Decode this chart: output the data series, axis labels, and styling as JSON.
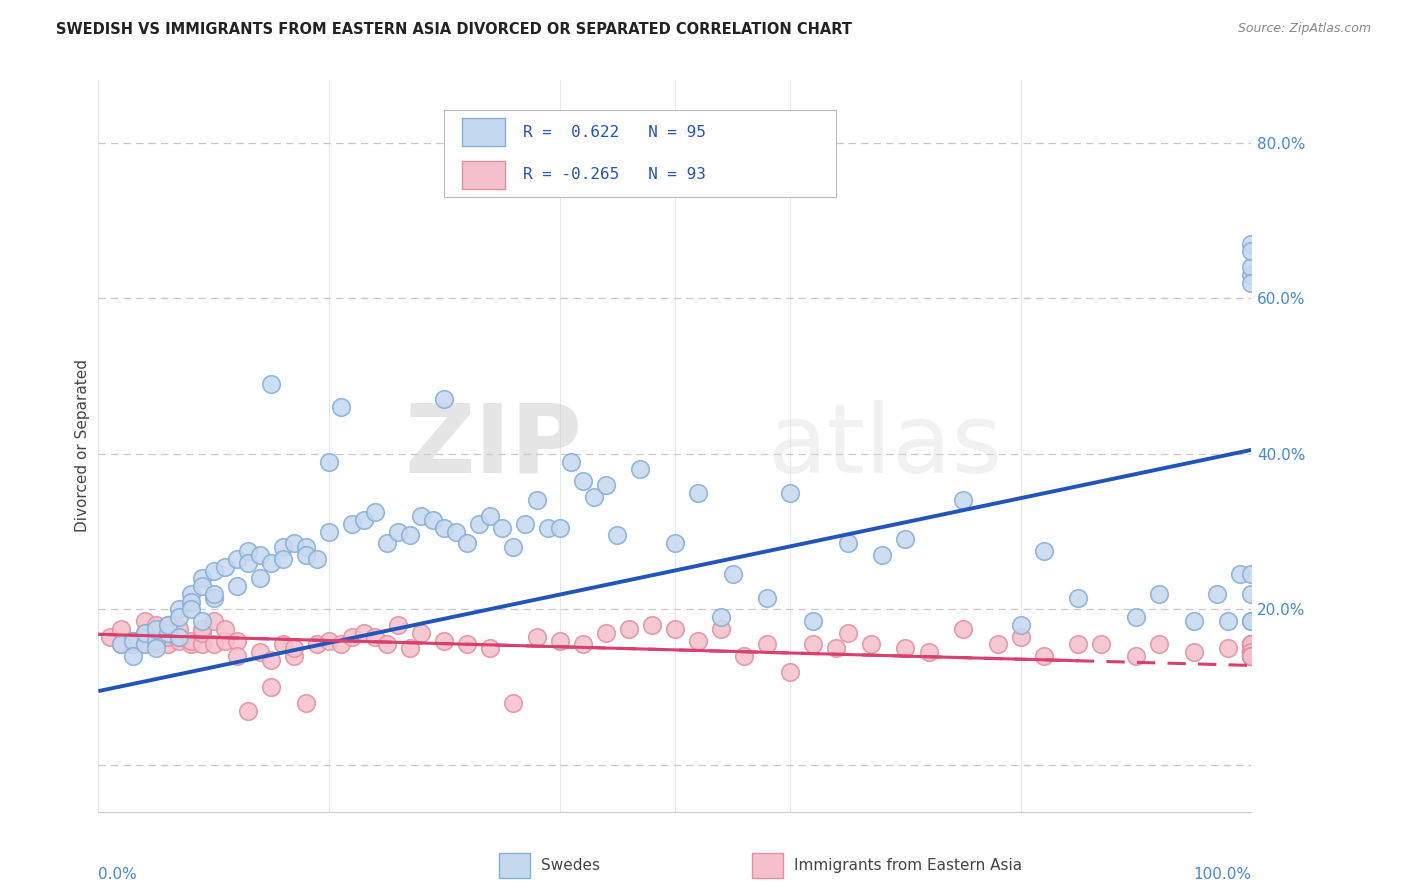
{
  "title": "SWEDISH VS IMMIGRANTS FROM EASTERN ASIA DIVORCED OR SEPARATED CORRELATION CHART",
  "source": "Source: ZipAtlas.com",
  "ylabel": "Divorced or Separated",
  "watermark": "ZIPatlas",
  "blue_R": 0.622,
  "blue_N": 95,
  "pink_R": -0.265,
  "pink_N": 93,
  "blue_marker_face": "#C5D9F0",
  "blue_marker_edge": "#85AED4",
  "pink_marker_face": "#F5C0CB",
  "pink_marker_edge": "#E090A0",
  "trend_blue": "#2255BB",
  "trend_pink": "#D94070",
  "legend_blue_label": "Swedes",
  "legend_pink_label": "Immigrants from Eastern Asia",
  "ytick_values": [
    0.0,
    0.2,
    0.4,
    0.6,
    0.8
  ],
  "xmin": 0.0,
  "xmax": 1.0,
  "ymin": -0.06,
  "ymax": 0.88,
  "blue_trend_x0": 0.0,
  "blue_trend_y0": 0.095,
  "blue_trend_x1": 1.0,
  "blue_trend_y1": 0.405,
  "pink_trend_x0": 0.0,
  "pink_trend_y0": 0.168,
  "pink_trend_x1": 1.0,
  "pink_trend_y1": 0.128,
  "blue_x": [
    0.02,
    0.03,
    0.03,
    0.04,
    0.04,
    0.05,
    0.05,
    0.05,
    0.06,
    0.06,
    0.07,
    0.07,
    0.07,
    0.08,
    0.08,
    0.08,
    0.09,
    0.09,
    0.09,
    0.1,
    0.1,
    0.1,
    0.11,
    0.12,
    0.12,
    0.13,
    0.13,
    0.14,
    0.14,
    0.15,
    0.15,
    0.16,
    0.16,
    0.17,
    0.18,
    0.18,
    0.19,
    0.2,
    0.2,
    0.21,
    0.22,
    0.23,
    0.24,
    0.25,
    0.26,
    0.27,
    0.28,
    0.29,
    0.3,
    0.3,
    0.31,
    0.32,
    0.33,
    0.34,
    0.35,
    0.36,
    0.37,
    0.38,
    0.39,
    0.4,
    0.41,
    0.42,
    0.43,
    0.44,
    0.45,
    0.47,
    0.5,
    0.52,
    0.54,
    0.55,
    0.58,
    0.6,
    0.62,
    0.65,
    0.68,
    0.7,
    0.75,
    0.8,
    0.82,
    0.85,
    0.9,
    0.92,
    0.95,
    0.97,
    0.98,
    0.99,
    1.0,
    1.0,
    1.0,
    1.0,
    1.0,
    1.0,
    1.0,
    1.0,
    1.0
  ],
  "blue_y": [
    0.155,
    0.16,
    0.14,
    0.155,
    0.17,
    0.16,
    0.175,
    0.15,
    0.17,
    0.18,
    0.165,
    0.2,
    0.19,
    0.22,
    0.21,
    0.2,
    0.185,
    0.24,
    0.23,
    0.25,
    0.215,
    0.22,
    0.255,
    0.23,
    0.265,
    0.275,
    0.26,
    0.24,
    0.27,
    0.26,
    0.49,
    0.28,
    0.265,
    0.285,
    0.28,
    0.27,
    0.265,
    0.3,
    0.39,
    0.46,
    0.31,
    0.315,
    0.325,
    0.285,
    0.3,
    0.295,
    0.32,
    0.315,
    0.305,
    0.47,
    0.3,
    0.285,
    0.31,
    0.32,
    0.305,
    0.28,
    0.31,
    0.34,
    0.305,
    0.305,
    0.39,
    0.365,
    0.345,
    0.36,
    0.295,
    0.38,
    0.285,
    0.35,
    0.19,
    0.245,
    0.215,
    0.35,
    0.185,
    0.285,
    0.27,
    0.29,
    0.34,
    0.18,
    0.275,
    0.215,
    0.19,
    0.22,
    0.185,
    0.22,
    0.185,
    0.245,
    0.63,
    0.67,
    0.64,
    0.66,
    0.62,
    0.185,
    0.22,
    0.185,
    0.245
  ],
  "pink_x": [
    0.01,
    0.02,
    0.02,
    0.03,
    0.03,
    0.04,
    0.04,
    0.04,
    0.05,
    0.05,
    0.05,
    0.06,
    0.06,
    0.06,
    0.07,
    0.07,
    0.07,
    0.08,
    0.08,
    0.09,
    0.09,
    0.09,
    0.1,
    0.1,
    0.11,
    0.11,
    0.12,
    0.12,
    0.13,
    0.14,
    0.15,
    0.15,
    0.16,
    0.17,
    0.17,
    0.18,
    0.19,
    0.2,
    0.21,
    0.22,
    0.23,
    0.24,
    0.25,
    0.26,
    0.27,
    0.28,
    0.3,
    0.32,
    0.34,
    0.36,
    0.38,
    0.4,
    0.42,
    0.44,
    0.46,
    0.48,
    0.5,
    0.52,
    0.54,
    0.56,
    0.58,
    0.6,
    0.62,
    0.64,
    0.65,
    0.67,
    0.7,
    0.72,
    0.75,
    0.78,
    0.8,
    0.82,
    0.85,
    0.87,
    0.9,
    0.92,
    0.95,
    0.98,
    1.0,
    1.0,
    1.0,
    1.0,
    1.0,
    1.0,
    1.0,
    1.0,
    1.0,
    1.0,
    1.0,
    1.0,
    1.0,
    1.0,
    1.0
  ],
  "pink_y": [
    0.165,
    0.155,
    0.175,
    0.155,
    0.16,
    0.155,
    0.17,
    0.185,
    0.155,
    0.17,
    0.18,
    0.155,
    0.18,
    0.165,
    0.16,
    0.165,
    0.175,
    0.155,
    0.16,
    0.155,
    0.17,
    0.175,
    0.155,
    0.185,
    0.16,
    0.175,
    0.16,
    0.14,
    0.07,
    0.145,
    0.1,
    0.135,
    0.155,
    0.14,
    0.15,
    0.08,
    0.155,
    0.16,
    0.155,
    0.165,
    0.17,
    0.165,
    0.155,
    0.18,
    0.15,
    0.17,
    0.16,
    0.155,
    0.15,
    0.08,
    0.165,
    0.16,
    0.155,
    0.17,
    0.175,
    0.18,
    0.175,
    0.16,
    0.175,
    0.14,
    0.155,
    0.12,
    0.155,
    0.15,
    0.17,
    0.155,
    0.15,
    0.145,
    0.175,
    0.155,
    0.165,
    0.14,
    0.155,
    0.155,
    0.14,
    0.155,
    0.145,
    0.15,
    0.14,
    0.145,
    0.155,
    0.155,
    0.145,
    0.14,
    0.155,
    0.145,
    0.145,
    0.155,
    0.14,
    0.14,
    0.145,
    0.14,
    0.14
  ]
}
